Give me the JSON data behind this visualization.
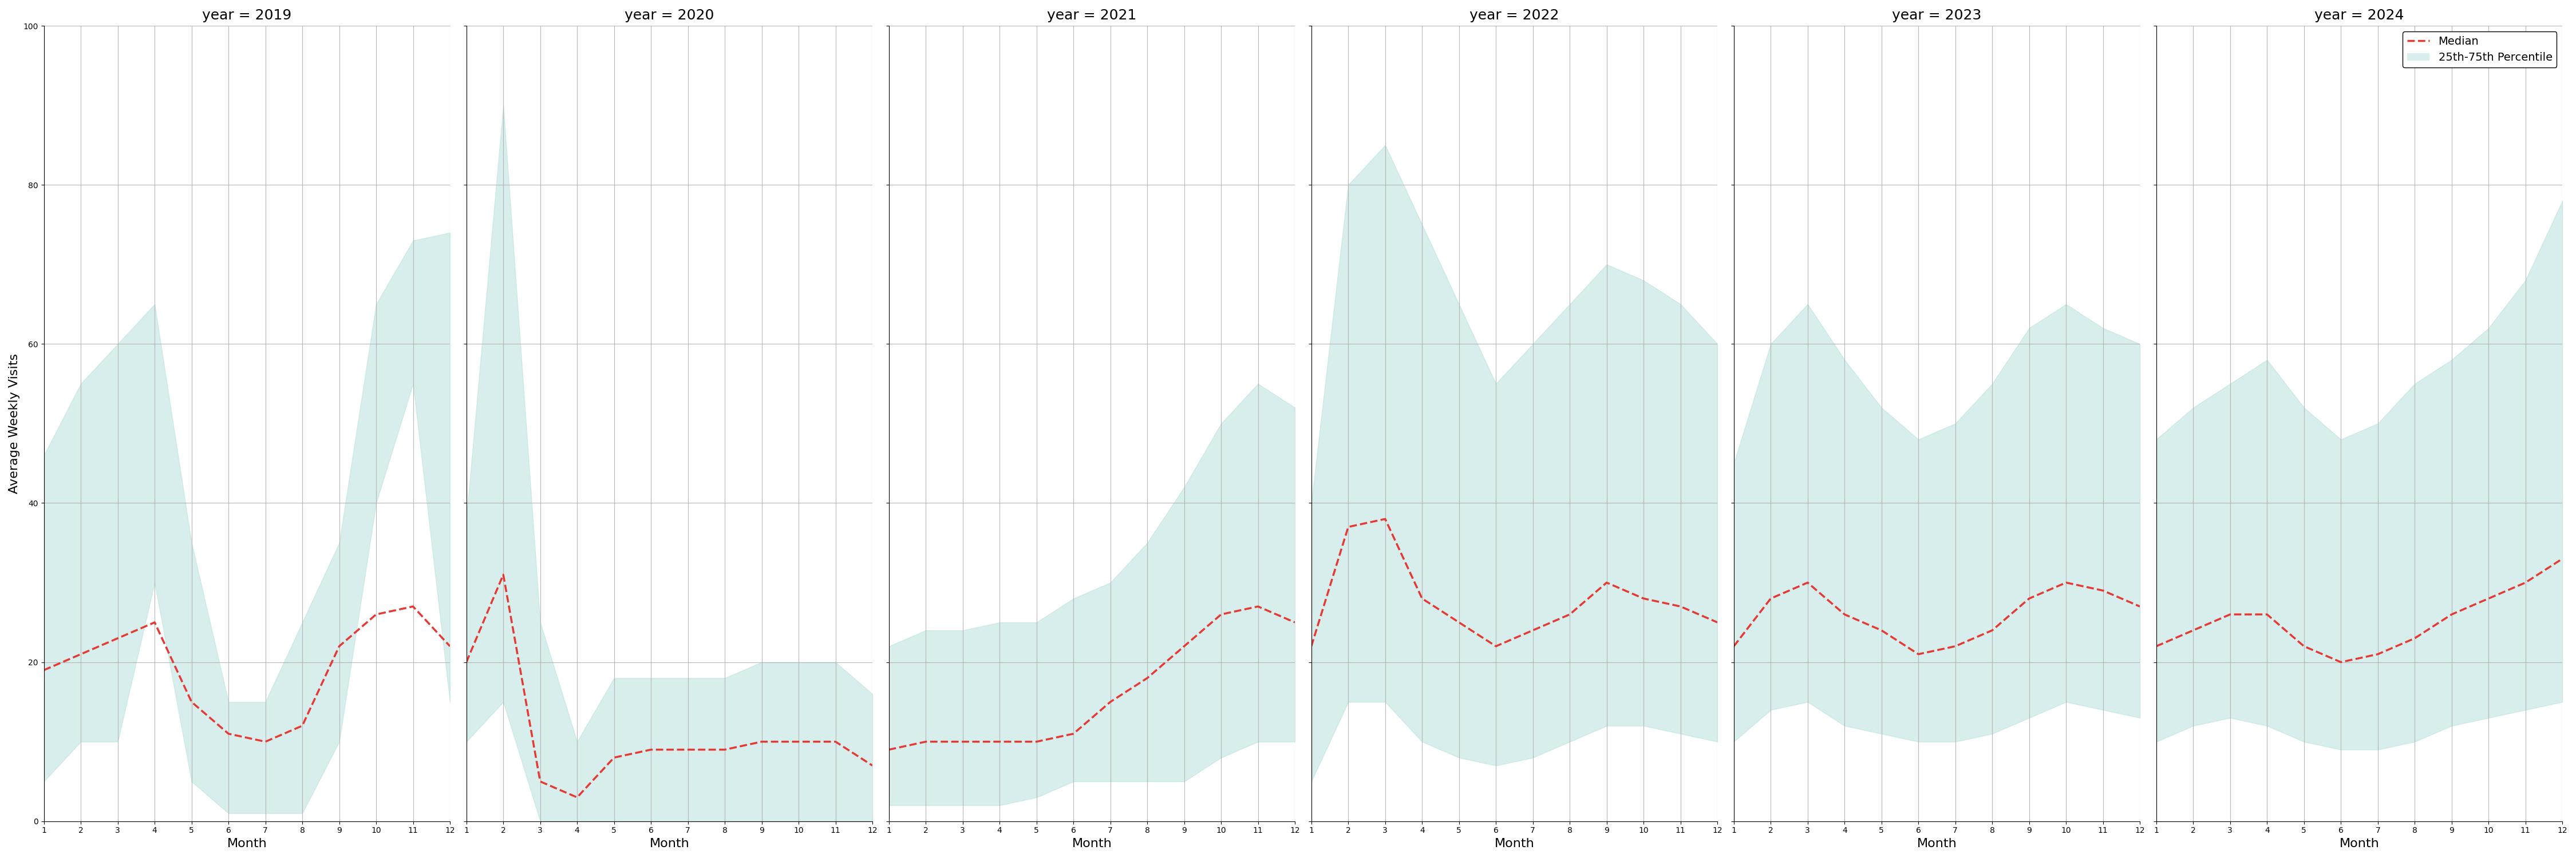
{
  "years": [
    2019,
    2020,
    2021,
    2022,
    2023,
    2024
  ],
  "months": [
    1,
    2,
    3,
    4,
    5,
    6,
    7,
    8,
    9,
    10,
    11,
    12
  ],
  "median": {
    "2019": [
      19,
      21,
      23,
      25,
      15,
      11,
      10,
      12,
      22,
      26,
      27,
      22
    ],
    "2020": [
      20,
      31,
      5,
      3,
      8,
      9,
      9,
      9,
      10,
      10,
      10,
      7
    ],
    "2021": [
      9,
      10,
      10,
      10,
      10,
      11,
      15,
      18,
      22,
      26,
      27,
      25
    ],
    "2022": [
      22,
      37,
      38,
      28,
      25,
      22,
      24,
      26,
      30,
      28,
      27,
      25
    ],
    "2023": [
      22,
      28,
      30,
      26,
      24,
      21,
      22,
      24,
      28,
      30,
      29,
      27
    ],
    "2024": [
      22,
      24,
      26,
      26,
      22,
      20,
      21,
      23,
      26,
      28,
      30,
      33
    ]
  },
  "p25": {
    "2019": [
      5,
      10,
      10,
      30,
      5,
      1,
      1,
      1,
      10,
      40,
      55,
      15
    ],
    "2020": [
      10,
      15,
      0,
      0,
      0,
      0,
      0,
      0,
      0,
      0,
      0,
      0
    ],
    "2021": [
      2,
      2,
      2,
      2,
      3,
      5,
      5,
      5,
      5,
      8,
      10,
      10
    ],
    "2022": [
      5,
      15,
      15,
      10,
      8,
      7,
      8,
      10,
      12,
      12,
      11,
      10
    ],
    "2023": [
      10,
      14,
      15,
      12,
      11,
      10,
      10,
      11,
      13,
      15,
      14,
      13
    ],
    "2024": [
      10,
      12,
      13,
      12,
      10,
      9,
      9,
      10,
      12,
      13,
      14,
      15
    ]
  },
  "p75": {
    "2019": [
      46,
      55,
      60,
      65,
      35,
      15,
      15,
      25,
      35,
      65,
      73,
      74
    ],
    "2020": [
      38,
      90,
      25,
      10,
      18,
      18,
      18,
      18,
      20,
      20,
      20,
      16
    ],
    "2021": [
      22,
      24,
      24,
      25,
      25,
      28,
      30,
      35,
      42,
      50,
      55,
      52
    ],
    "2022": [
      40,
      80,
      85,
      75,
      65,
      55,
      60,
      65,
      70,
      68,
      65,
      60
    ],
    "2023": [
      45,
      60,
      65,
      58,
      52,
      48,
      50,
      55,
      62,
      65,
      62,
      60
    ],
    "2024": [
      48,
      52,
      55,
      58,
      52,
      48,
      50,
      55,
      58,
      62,
      68,
      78
    ]
  },
  "fill_color": "#b2dfdb",
  "fill_alpha": 0.5,
  "line_color": "#e53935",
  "line_style": "--",
  "line_width": 2.5,
  "ylabel": "Average Weekly Visits",
  "xlabel": "Month",
  "ylim": [
    0,
    100
  ],
  "grid_color": "#b0b0b0",
  "title_prefix": "year = "
}
